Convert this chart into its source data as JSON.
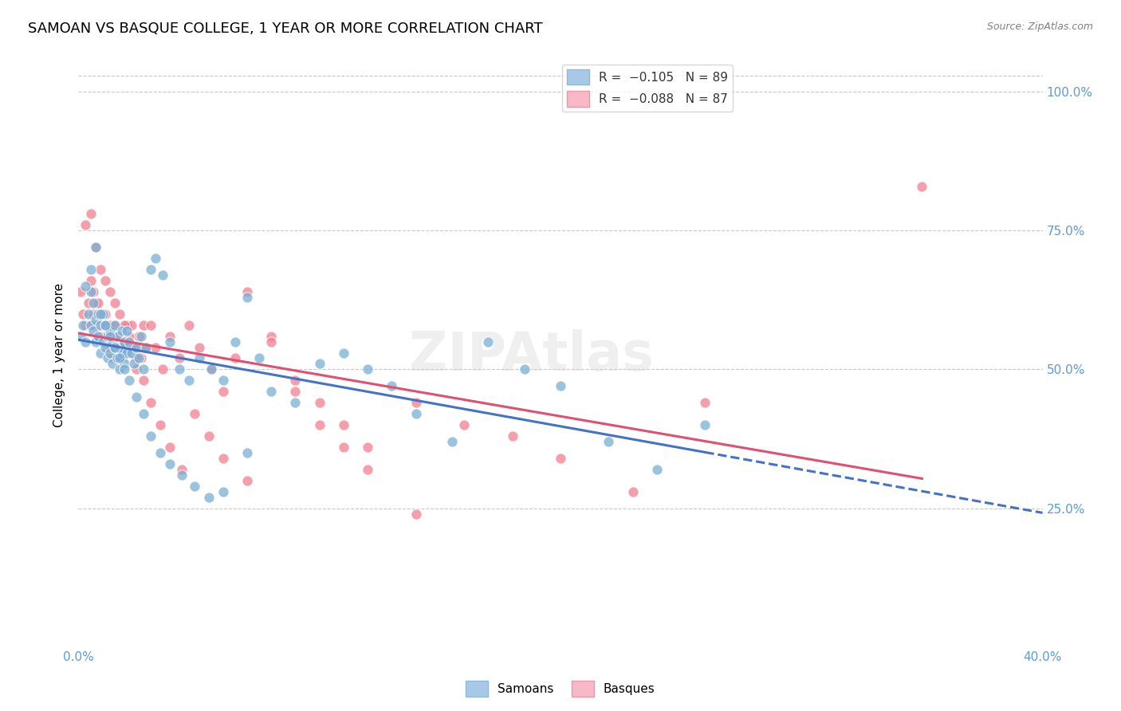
{
  "title": "SAMOAN VS BASQUE COLLEGE, 1 YEAR OR MORE CORRELATION CHART",
  "source": "Source: ZipAtlas.com",
  "ylabel": "College, 1 year or more",
  "ytick_labels": [
    "100.0%",
    "75.0%",
    "50.0%",
    "25.0%"
  ],
  "ytick_values": [
    1.0,
    0.75,
    0.5,
    0.25
  ],
  "xmin": 0.0,
  "xmax": 0.4,
  "ymin": 0.0,
  "ymax": 1.05,
  "samoans_color": "#7bafd4",
  "basques_color": "#f08090",
  "samoans_line_color": "#4472c4",
  "basques_line_color": "#e05070",
  "watermark": "ZIPAtlas",
  "title_fontsize": 13,
  "axis_color": "#5b9bd5",
  "grid_color": "#c8c8c8",
  "samoans_x": [
    0.001,
    0.002,
    0.003,
    0.004,
    0.005,
    0.005,
    0.006,
    0.006,
    0.007,
    0.007,
    0.008,
    0.008,
    0.009,
    0.009,
    0.01,
    0.01,
    0.011,
    0.011,
    0.012,
    0.012,
    0.013,
    0.013,
    0.014,
    0.014,
    0.015,
    0.015,
    0.016,
    0.016,
    0.017,
    0.017,
    0.018,
    0.018,
    0.019,
    0.019,
    0.02,
    0.02,
    0.021,
    0.022,
    0.023,
    0.024,
    0.025,
    0.026,
    0.027,
    0.028,
    0.03,
    0.032,
    0.035,
    0.038,
    0.042,
    0.046,
    0.05,
    0.055,
    0.06,
    0.065,
    0.07,
    0.075,
    0.08,
    0.09,
    0.1,
    0.11,
    0.12,
    0.13,
    0.14,
    0.155,
    0.17,
    0.185,
    0.2,
    0.22,
    0.24,
    0.26,
    0.003,
    0.005,
    0.007,
    0.009,
    0.011,
    0.013,
    0.015,
    0.017,
    0.019,
    0.021,
    0.024,
    0.027,
    0.03,
    0.034,
    0.038,
    0.043,
    0.048,
    0.054,
    0.06,
    0.07
  ],
  "samoans_y": [
    0.56,
    0.58,
    0.55,
    0.6,
    0.64,
    0.58,
    0.57,
    0.62,
    0.55,
    0.59,
    0.56,
    0.6,
    0.58,
    0.53,
    0.55,
    0.6,
    0.54,
    0.58,
    0.56,
    0.52,
    0.57,
    0.53,
    0.55,
    0.51,
    0.54,
    0.58,
    0.52,
    0.56,
    0.5,
    0.54,
    0.53,
    0.57,
    0.51,
    0.55,
    0.53,
    0.57,
    0.55,
    0.53,
    0.51,
    0.54,
    0.52,
    0.56,
    0.5,
    0.54,
    0.68,
    0.7,
    0.67,
    0.55,
    0.5,
    0.48,
    0.52,
    0.5,
    0.48,
    0.55,
    0.63,
    0.52,
    0.46,
    0.44,
    0.51,
    0.53,
    0.5,
    0.47,
    0.42,
    0.37,
    0.55,
    0.5,
    0.47,
    0.37,
    0.32,
    0.4,
    0.65,
    0.68,
    0.72,
    0.6,
    0.58,
    0.56,
    0.54,
    0.52,
    0.5,
    0.48,
    0.45,
    0.42,
    0.38,
    0.35,
    0.33,
    0.31,
    0.29,
    0.27,
    0.28,
    0.35
  ],
  "basques_x": [
    0.001,
    0.002,
    0.003,
    0.004,
    0.005,
    0.005,
    0.006,
    0.006,
    0.007,
    0.007,
    0.008,
    0.008,
    0.009,
    0.009,
    0.01,
    0.01,
    0.011,
    0.011,
    0.012,
    0.012,
    0.013,
    0.013,
    0.014,
    0.014,
    0.015,
    0.016,
    0.017,
    0.018,
    0.019,
    0.02,
    0.021,
    0.022,
    0.023,
    0.024,
    0.025,
    0.026,
    0.027,
    0.028,
    0.03,
    0.032,
    0.035,
    0.038,
    0.042,
    0.046,
    0.05,
    0.055,
    0.06,
    0.065,
    0.07,
    0.08,
    0.09,
    0.1,
    0.11,
    0.12,
    0.14,
    0.16,
    0.18,
    0.2,
    0.23,
    0.26,
    0.003,
    0.005,
    0.007,
    0.009,
    0.011,
    0.013,
    0.015,
    0.017,
    0.019,
    0.021,
    0.024,
    0.027,
    0.03,
    0.034,
    0.038,
    0.043,
    0.048,
    0.054,
    0.06,
    0.07,
    0.08,
    0.09,
    0.1,
    0.11,
    0.12,
    0.14,
    0.35
  ],
  "basques_y": [
    0.64,
    0.6,
    0.58,
    0.62,
    0.66,
    0.58,
    0.6,
    0.64,
    0.58,
    0.62,
    0.58,
    0.62,
    0.6,
    0.56,
    0.6,
    0.58,
    0.56,
    0.6,
    0.58,
    0.54,
    0.58,
    0.54,
    0.56,
    0.52,
    0.58,
    0.54,
    0.56,
    0.52,
    0.54,
    0.58,
    0.54,
    0.58,
    0.54,
    0.5,
    0.56,
    0.52,
    0.58,
    0.54,
    0.58,
    0.54,
    0.5,
    0.56,
    0.52,
    0.58,
    0.54,
    0.5,
    0.46,
    0.52,
    0.64,
    0.56,
    0.48,
    0.44,
    0.4,
    0.36,
    0.44,
    0.4,
    0.38,
    0.34,
    0.28,
    0.44,
    0.76,
    0.78,
    0.72,
    0.68,
    0.66,
    0.64,
    0.62,
    0.6,
    0.58,
    0.56,
    0.52,
    0.48,
    0.44,
    0.4,
    0.36,
    0.32,
    0.42,
    0.38,
    0.34,
    0.3,
    0.55,
    0.46,
    0.4,
    0.36,
    0.32,
    0.24,
    0.83
  ]
}
